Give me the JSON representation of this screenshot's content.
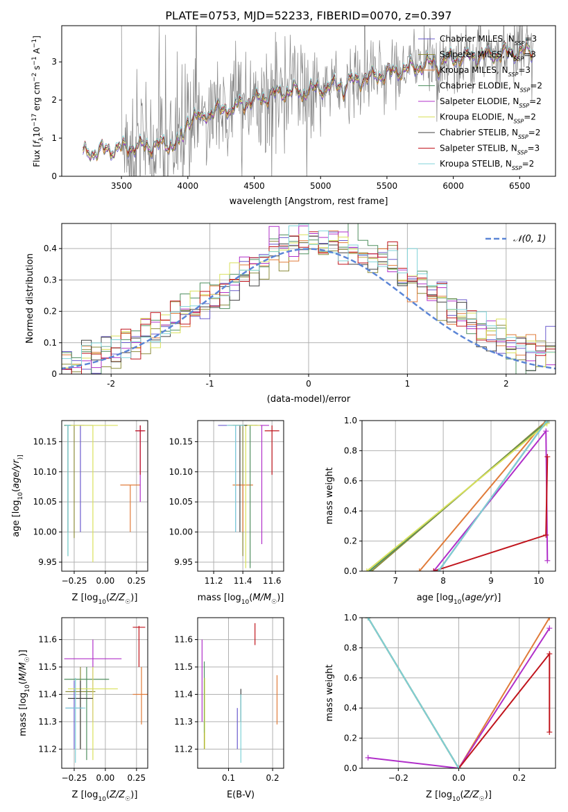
{
  "figure_title": "PLATE=0753, MJD=52233, FIBERID=0070, z=0.397",
  "colors": {
    "grid": "#b0b0b0",
    "data_spectrum": "#808080",
    "normal_curve": "#5b85d6"
  },
  "models": [
    {
      "name": "Chabrier MILES",
      "nssp": "3",
      "color": "#6a5acd"
    },
    {
      "name": "Salpeter MILES",
      "nssp": "3",
      "color": "#8c8c3c"
    },
    {
      "name": "Kroupa MILES",
      "nssp": "3",
      "color": "#e07b39"
    },
    {
      "name": "Chabrier ELODIE",
      "nssp": "2",
      "color": "#4f8f5f"
    },
    {
      "name": "Salpeter ELODIE",
      "nssp": "2",
      "color": "#b02fc9"
    },
    {
      "name": "Kroupa ELODIE",
      "nssp": "2",
      "color": "#d9e05a"
    },
    {
      "name": "Chabrier STELIB",
      "nssp": "2",
      "color": "#404040"
    },
    {
      "name": "Salpeter STELIB",
      "nssp": "3",
      "color": "#c0141c"
    },
    {
      "name": "Kroupa STELIB",
      "nssp": "2",
      "color": "#7fd3d8"
    }
  ],
  "chart_data": [
    {
      "id": "spectrum",
      "type": "line",
      "xlabel": "wavelength [Angstrom, rest frame]",
      "ylabel_parts": [
        "Flux [",
        "f",
        "λ",
        "10",
        "−17",
        " erg cm",
        "−2",
        " s",
        "−1",
        " A",
        "−1",
        "]"
      ],
      "xlim": [
        3050,
        6770
      ],
      "ylim": [
        0,
        3.95
      ],
      "xticks": [
        3500,
        4000,
        4500,
        5000,
        5500,
        6000,
        6500
      ],
      "yticks": [
        0,
        1,
        2,
        3
      ],
      "legend": "upper-right",
      "data_range": [
        3500,
        6600
      ],
      "model_range": [
        3210,
        6600
      ],
      "continuum": [
        [
          3210,
          0.6
        ],
        [
          3500,
          0.75
        ],
        [
          3900,
          0.85
        ],
        [
          4000,
          1.5
        ],
        [
          4300,
          1.8
        ],
        [
          4700,
          2.2
        ],
        [
          5000,
          2.3
        ],
        [
          5500,
          2.7
        ],
        [
          6000,
          3.1
        ],
        [
          6600,
          3.3
        ]
      ]
    },
    {
      "id": "residual_hist",
      "type": "bar",
      "xlabel": "(data-model)/error",
      "ylabel": "Normed distribution",
      "xlim": [
        -2.5,
        2.5
      ],
      "ylim": [
        0,
        0.48
      ],
      "xticks": [
        -2,
        -1,
        0,
        1,
        2
      ],
      "yticks": [
        0.0,
        0.1,
        0.2,
        0.3,
        0.4
      ],
      "legend_label": "𝒩(0, 1)",
      "bin_width": 0.1
    },
    {
      "id": "age_vs_Z",
      "type": "scatter",
      "xlabel_parts": [
        "Z [log",
        "10",
        "(",
        "Z/Z",
        "☉",
        ")]"
      ],
      "ylabel_parts": [
        "age  [log",
        "10",
        "(",
        "age/yr",
        ")]"
      ],
      "xlim": [
        -0.35,
        0.34
      ],
      "ylim": [
        9.935,
        10.185
      ],
      "xticks": [
        -0.25,
        0.0,
        0.25
      ],
      "xticklabels": [
        "−0.25",
        "0.00",
        "0.25"
      ],
      "yticks": [
        9.95,
        10.0,
        10.05,
        10.1,
        10.15
      ],
      "yticklabels": [
        "9.95",
        "10.00",
        "10.05",
        "10.10",
        "10.15"
      ],
      "points": [
        {
          "m": 0,
          "x": -0.2,
          "y": 10.177,
          "xe": 0.1,
          "ye0": 10.0,
          "ye1": 10.177
        },
        {
          "m": 1,
          "x": -0.25,
          "y": 10.177,
          "xe": 0.08,
          "ye0": 9.99,
          "ye1": 10.177
        },
        {
          "m": 2,
          "x": 0.2,
          "y": 10.078,
          "xe": 0.08,
          "ye0": 10.0,
          "ye1": 10.078
        },
        {
          "m": 3,
          "x": -0.3,
          "y": 10.177,
          "xe": 0.03,
          "ye0": 9.96,
          "ye1": 10.177
        },
        {
          "m": 4,
          "x": 0.28,
          "y": 10.168,
          "xe": 0.03,
          "ye0": 10.05,
          "ye1": 10.177
        },
        {
          "m": 5,
          "x": -0.1,
          "y": 10.177,
          "xe": 0.2,
          "ye0": 9.95,
          "ye1": 10.177
        },
        {
          "m": 6,
          "x": -0.3,
          "y": 10.177,
          "xe": 0.02,
          "ye0": 10.0,
          "ye1": 10.177
        },
        {
          "m": 7,
          "x": 0.28,
          "y": 10.168,
          "xe": 0.04,
          "ye0": 10.095,
          "ye1": 10.177
        },
        {
          "m": 8,
          "x": -0.3,
          "y": 10.177,
          "xe": 0.02,
          "ye0": 9.96,
          "ye1": 10.177
        }
      ]
    },
    {
      "id": "age_vs_mass",
      "type": "scatter",
      "xlabel_parts": [
        "mass [log",
        "10",
        "(",
        "M/M",
        "☉",
        ")]"
      ],
      "xlim": [
        11.09,
        11.68
      ],
      "ylim": [
        9.935,
        10.185
      ],
      "xticks": [
        11.2,
        11.4,
        11.6
      ],
      "xticklabels": [
        "11.2",
        "11.4",
        "11.6"
      ],
      "yticks": [
        9.95,
        10.0,
        10.05,
        10.1,
        10.15
      ],
      "yticklabels": [
        "9.95",
        "10.00",
        "10.05",
        "10.10",
        "10.15"
      ],
      "points": [
        {
          "m": 0,
          "x": 11.35,
          "y": 10.177,
          "xe": 0.12,
          "ye0": 10.0,
          "ye1": 10.177
        },
        {
          "m": 1,
          "x": 11.4,
          "y": 10.177,
          "xe": 0.1,
          "ye0": 9.96,
          "ye1": 10.177
        },
        {
          "m": 2,
          "x": 11.4,
          "y": 10.078,
          "xe": 0.07,
          "ye0": 10.0,
          "ye1": 10.078
        },
        {
          "m": 3,
          "x": 11.45,
          "y": 10.177,
          "xe": 0.05,
          "ye0": 9.94,
          "ye1": 10.177
        },
        {
          "m": 4,
          "x": 11.53,
          "y": 10.177,
          "xe": 0.05,
          "ye0": 9.98,
          "ye1": 10.177
        },
        {
          "m": 5,
          "x": 11.42,
          "y": 10.177,
          "xe": 0.1,
          "ye0": 9.94,
          "ye1": 10.177
        },
        {
          "m": 6,
          "x": 11.38,
          "y": 10.177,
          "xe": 0.05,
          "ye0": 10.0,
          "ye1": 10.177
        },
        {
          "m": 7,
          "x": 11.6,
          "y": 10.168,
          "xe": 0.05,
          "ye0": 10.095,
          "ye1": 10.177
        },
        {
          "m": 8,
          "x": 11.35,
          "y": 10.177,
          "xe": 0.06,
          "ye0": 10.0,
          "ye1": 10.177
        }
      ]
    },
    {
      "id": "massweight_vs_age",
      "type": "line",
      "xlabel_parts": [
        "age  [log",
        "10",
        "(",
        "age/yr",
        ")]"
      ],
      "ylabel": "mass weight",
      "xlim": [
        6.3,
        10.35
      ],
      "ylim": [
        0,
        1.0
      ],
      "xticks": [
        7,
        8,
        9,
        10
      ],
      "xticklabels": [
        "7",
        "8",
        "9",
        "10"
      ],
      "yticks": [
        0.0,
        0.2,
        0.4,
        0.6,
        0.8,
        1.0
      ],
      "yticklabels": [
        "0.0",
        "0.2",
        "0.4",
        "0.6",
        "0.8",
        "1.0"
      ],
      "lines": [
        {
          "m": 0,
          "pts": [
            [
              7.9,
              0.0
            ],
            [
              10.17,
              1.0
            ]
          ]
        },
        {
          "m": 1,
          "pts": [
            [
              6.5,
              0.0
            ],
            [
              10.17,
              1.0
            ]
          ]
        },
        {
          "m": 2,
          "pts": [
            [
              7.5,
              0.0
            ],
            [
              10.15,
              1.0
            ]
          ]
        },
        {
          "m": 3,
          "pts": [
            [
              6.45,
              0.0
            ],
            [
              10.17,
              0.99
            ]
          ]
        },
        {
          "m": 4,
          "pts": [
            [
              7.8,
              0.0
            ],
            [
              10.15,
              0.93
            ],
            [
              10.18,
              0.07
            ]
          ]
        },
        {
          "m": 5,
          "pts": [
            [
              6.4,
              0.0
            ],
            [
              10.17,
              0.98
            ]
          ]
        },
        {
          "m": 6,
          "pts": [
            [
              7.9,
              0.0
            ],
            [
              10.17,
              1.0
            ]
          ]
        },
        {
          "m": 7,
          "pts": [
            [
              7.8,
              0.0
            ],
            [
              10.15,
              0.24
            ],
            [
              10.18,
              0.76
            ]
          ]
        },
        {
          "m": 8,
          "pts": [
            [
              7.9,
              0.0
            ],
            [
              10.17,
              1.0
            ]
          ]
        }
      ]
    },
    {
      "id": "mass_vs_Z",
      "type": "scatter",
      "xlabel_parts": [
        "Z [log",
        "10",
        "(",
        "Z/Z",
        "☉",
        ")]"
      ],
      "ylabel_parts": [
        "mass [log",
        "10",
        "(",
        "M/M",
        "☉",
        ")]"
      ],
      "xlim": [
        -0.35,
        0.34
      ],
      "ylim": [
        11.13,
        11.68
      ],
      "xticks": [
        -0.25,
        0.0,
        0.25
      ],
      "xticklabels": [
        "−0.25",
        "0.00",
        "0.25"
      ],
      "yticks": [
        11.2,
        11.3,
        11.4,
        11.5,
        11.6
      ],
      "yticklabels": [
        "11.2",
        "11.3",
        "11.4",
        "11.5",
        "11.6"
      ],
      "points": [
        {
          "m": 0,
          "x": -0.25,
          "y": 11.35,
          "xe": 0.07,
          "ye0": 11.2,
          "ye1": 11.45
        },
        {
          "m": 1,
          "x": -0.2,
          "y": 11.41,
          "xe": 0.12,
          "ye0": 11.2,
          "ye1": 11.5
        },
        {
          "m": 2,
          "x": 0.29,
          "y": 11.4,
          "xe": 0.07,
          "ye0": 11.29,
          "ye1": 11.5
        },
        {
          "m": 3,
          "x": -0.15,
          "y": 11.455,
          "xe": 0.18,
          "ye0": 11.16,
          "ye1": 11.5
        },
        {
          "m": 4,
          "x": -0.1,
          "y": 11.53,
          "xe": 0.23,
          "ye0": 11.3,
          "ye1": 11.6
        },
        {
          "m": 5,
          "x": -0.1,
          "y": 11.42,
          "xe": 0.2,
          "ye0": 11.16,
          "ye1": 11.5
        },
        {
          "m": 6,
          "x": -0.2,
          "y": 11.385,
          "xe": 0.1,
          "ye0": 11.2,
          "ye1": 11.45
        },
        {
          "m": 7,
          "x": 0.27,
          "y": 11.645,
          "xe": 0.05,
          "ye0": 11.5,
          "ye1": 11.65
        },
        {
          "m": 8,
          "x": -0.24,
          "y": 11.35,
          "xe": 0.08,
          "ye0": 11.15,
          "ye1": 11.46
        }
      ]
    },
    {
      "id": "mass_vs_ebv",
      "type": "scatter",
      "xlabel": "E(B-V)",
      "xlim": [
        0.03,
        0.225
      ],
      "ylim": [
        11.13,
        11.68
      ],
      "xticks": [
        0.1,
        0.2
      ],
      "xticklabels": [
        "0.1",
        "0.2"
      ],
      "yticks": [
        11.2,
        11.3,
        11.4,
        11.5,
        11.6
      ],
      "yticklabels": [
        "11.2",
        "11.3",
        "11.4",
        "11.5",
        "11.6"
      ],
      "points": [
        {
          "m": 0,
          "x": 0.12,
          "ye0": 11.2,
          "ye1": 11.35
        },
        {
          "m": 1,
          "x": 0.045,
          "ye0": 11.2,
          "ye1": 11.45
        },
        {
          "m": 2,
          "x": 0.21,
          "ye0": 11.29,
          "ye1": 11.47
        },
        {
          "m": 3,
          "x": 0.045,
          "ye0": 11.26,
          "ye1": 11.52
        },
        {
          "m": 4,
          "x": 0.04,
          "ye0": 11.3,
          "ye1": 11.6
        },
        {
          "m": 5,
          "x": 0.046,
          "ye0": 11.2,
          "ye1": 11.46
        },
        {
          "m": 6,
          "x": 0.128,
          "ye0": 11.3,
          "ye1": 11.42
        },
        {
          "m": 7,
          "x": 0.16,
          "ye0": 11.58,
          "ye1": 11.66
        },
        {
          "m": 8,
          "x": 0.128,
          "ye0": 11.15,
          "ye1": 11.4
        }
      ]
    },
    {
      "id": "massweight_vs_Z",
      "type": "line",
      "xlabel_parts": [
        "Z [log",
        "10",
        "(",
        "Z/Z",
        "☉",
        ")]"
      ],
      "ylabel": "mass weight",
      "xlim": [
        -0.32,
        0.32
      ],
      "ylim": [
        0,
        1.0
      ],
      "xticks": [
        -0.2,
        0.0,
        0.2
      ],
      "xticklabels": [
        "−0.2",
        "0.0",
        "0.2"
      ],
      "yticks": [
        0.0,
        0.2,
        0.4,
        0.6,
        0.8,
        1.0
      ],
      "yticklabels": [
        "0.0",
        "0.2",
        "0.4",
        "0.6",
        "0.8",
        "1.0"
      ],
      "lines": [
        {
          "m": 0,
          "pts": [
            [
              -0.3,
              1.0
            ],
            [
              0.0,
              0.0
            ]
          ]
        },
        {
          "m": 1,
          "pts": [
            [
              -0.3,
              1.0
            ],
            [
              0.0,
              0.0
            ]
          ]
        },
        {
          "m": 2,
          "pts": [
            [
              0.0,
              0.0
            ],
            [
              0.3,
              1.0
            ]
          ]
        },
        {
          "m": 3,
          "pts": [
            [
              -0.3,
              1.0
            ],
            [
              0.0,
              0.0
            ]
          ]
        },
        {
          "m": 4,
          "pts": [
            [
              -0.3,
              0.07
            ],
            [
              0.0,
              0.0
            ],
            [
              0.3,
              0.93
            ]
          ]
        },
        {
          "m": 5,
          "pts": [
            [
              -0.3,
              1.0
            ],
            [
              0.0,
              0.0
            ]
          ]
        },
        {
          "m": 6,
          "pts": [
            [
              -0.3,
              1.0
            ],
            [
              0.0,
              0.0
            ]
          ]
        },
        {
          "m": 7,
          "pts": [
            [
              0.0,
              0.0
            ],
            [
              0.3,
              0.76
            ],
            [
              0.3,
              0.24
            ]
          ]
        },
        {
          "m": 8,
          "pts": [
            [
              -0.3,
              1.0
            ],
            [
              0.0,
              0.0
            ]
          ]
        }
      ]
    }
  ]
}
